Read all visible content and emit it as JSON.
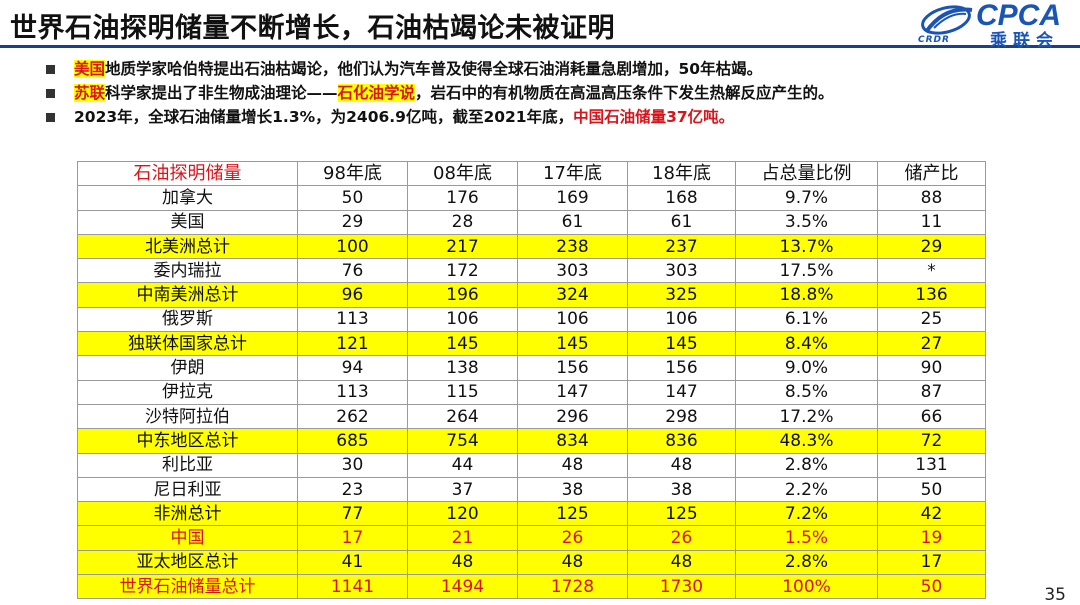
{
  "title": "世界石油探明储量不断增长，石油枯竭论未被证明",
  "logo": {
    "text": "CPCA",
    "subtext": "CRDR",
    "cn": "乘联会"
  },
  "bullets": [
    {
      "highlight": "美国",
      "text": "地质学家哈伯特提出石油枯竭论，他们认为汽车普及使得全球石油消耗量急剧增加，50年枯竭。"
    },
    {
      "highlight": "苏联",
      "text_a": "科学家提出了非生物成油理论——",
      "highlight2": "石化油学说",
      "text_b": "，岩石中的有机物质在高温高压条件下发生热解反应产生的。"
    },
    {
      "text": "2023年，全球石油储量增长1.3%，为2406.9亿吨，截至2021年底，",
      "red_text": "中国石油储量37亿吨。"
    }
  ],
  "table": {
    "headers": [
      "石油探明储量",
      "98年底",
      "08年底",
      "17年底",
      "18年底",
      "占总量比例",
      "储产比"
    ],
    "rows": [
      {
        "cells": [
          "加拿大",
          "50",
          "176",
          "169",
          "168",
          "9.7%",
          "88"
        ],
        "style": ""
      },
      {
        "cells": [
          "美国",
          "29",
          "28",
          "61",
          "61",
          "3.5%",
          "11"
        ],
        "style": ""
      },
      {
        "cells": [
          "北美洲总计",
          "100",
          "217",
          "238",
          "237",
          "13.7%",
          "29"
        ],
        "style": "yellow"
      },
      {
        "cells": [
          "委内瑞拉",
          "76",
          "172",
          "303",
          "303",
          "17.5%",
          "*"
        ],
        "style": ""
      },
      {
        "cells": [
          "中南美洲总计",
          "96",
          "196",
          "324",
          "325",
          "18.8%",
          "136"
        ],
        "style": "yellow"
      },
      {
        "cells": [
          "俄罗斯",
          "113",
          "106",
          "106",
          "106",
          "6.1%",
          "25"
        ],
        "style": ""
      },
      {
        "cells": [
          "独联体国家总计",
          "121",
          "145",
          "145",
          "145",
          "8.4%",
          "27"
        ],
        "style": "yellow"
      },
      {
        "cells": [
          "伊朗",
          "94",
          "138",
          "156",
          "156",
          "9.0%",
          "90"
        ],
        "style": ""
      },
      {
        "cells": [
          "伊拉克",
          "113",
          "115",
          "147",
          "147",
          "8.5%",
          "87"
        ],
        "style": ""
      },
      {
        "cells": [
          "沙特阿拉伯",
          "262",
          "264",
          "296",
          "298",
          "17.2%",
          "66"
        ],
        "style": ""
      },
      {
        "cells": [
          "中东地区总计",
          "685",
          "754",
          "834",
          "836",
          "48.3%",
          "72"
        ],
        "style": "yellow"
      },
      {
        "cells": [
          "利比亚",
          "30",
          "44",
          "48",
          "48",
          "2.8%",
          "131"
        ],
        "style": ""
      },
      {
        "cells": [
          "尼日利亚",
          "23",
          "37",
          "38",
          "38",
          "2.2%",
          "50"
        ],
        "style": ""
      },
      {
        "cells": [
          "非洲总计",
          "77",
          "120",
          "125",
          "125",
          "7.2%",
          "42"
        ],
        "style": "yellow"
      },
      {
        "cells": [
          "中国",
          "17",
          "21",
          "26",
          "26",
          "1.5%",
          "19"
        ],
        "style": "yellow red"
      },
      {
        "cells": [
          "亚太地区总计",
          "41",
          "48",
          "48",
          "48",
          "2.8%",
          "17"
        ],
        "style": "yellow"
      },
      {
        "cells": [
          "世界石油储量总计",
          "1141",
          "1494",
          "1728",
          "1730",
          "100%",
          "50"
        ],
        "style": "yellow red"
      }
    ]
  },
  "page_number": "35",
  "colors": {
    "accent_red": "#d9141b",
    "highlight_yellow": "#ffff00",
    "brand_blue": "#1a55b5"
  }
}
